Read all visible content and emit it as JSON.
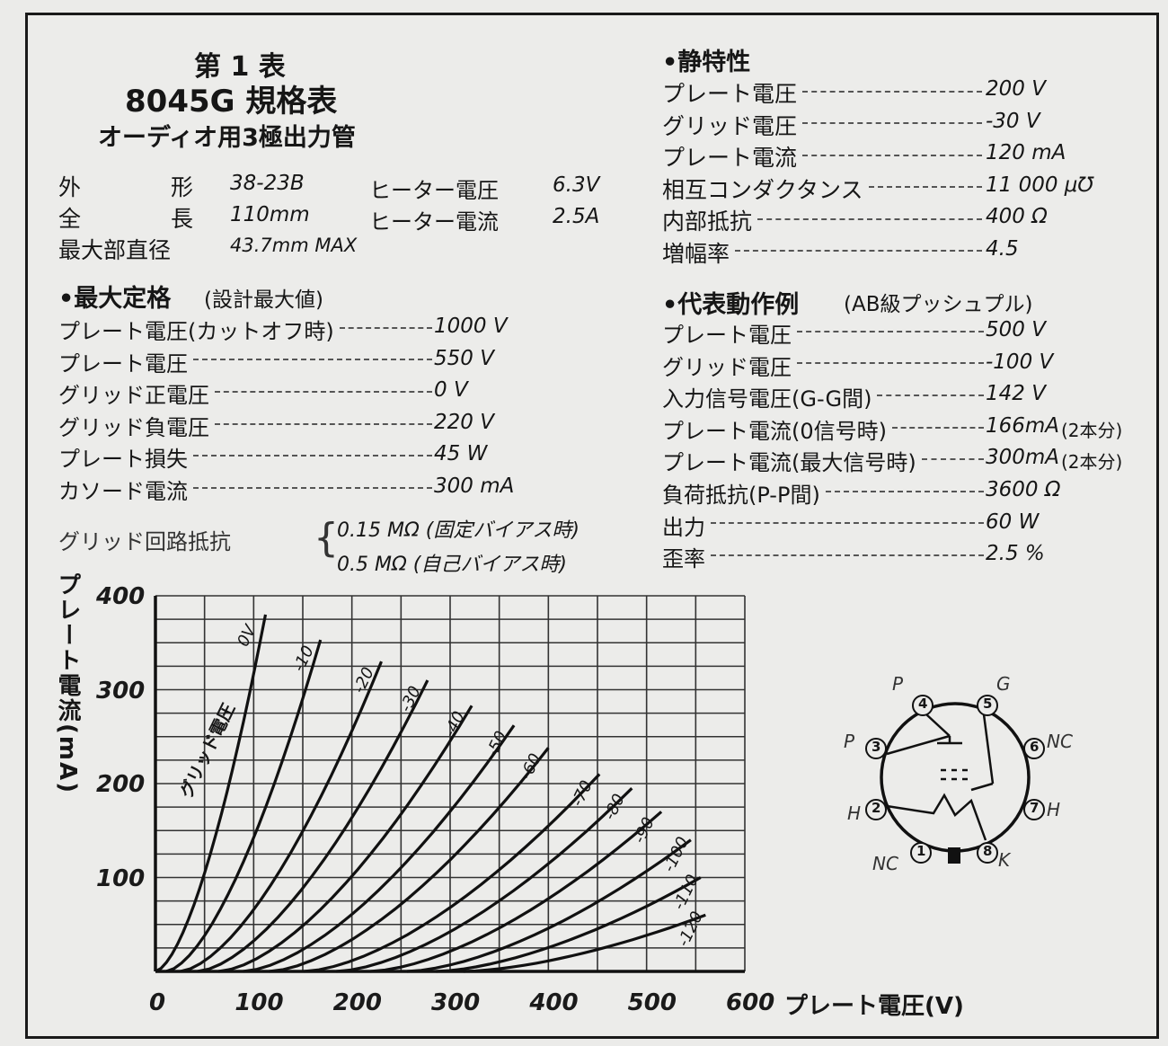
{
  "header": {
    "table_no": "第 1 表",
    "title": "8045G 規格表",
    "subtitle": "オーディオ用3極出力管"
  },
  "general": {
    "outline_label": "外　　　　形",
    "outline_value": "38-23B",
    "length_label": "全　　　　長",
    "length_value": "110mm",
    "diameter_label": "最大部直径",
    "diameter_value": "43.7mm MAX",
    "heater_voltage_label": "ヒーター電圧",
    "heater_voltage_value": "6.3V",
    "heater_current_label": "ヒーター電流",
    "heater_current_value": "2.5A"
  },
  "max_ratings": {
    "heading": "•最大定格",
    "note": "(設計最大値)",
    "items": [
      {
        "label": "プレート電圧(カットオフ時)",
        "value": "1000 V"
      },
      {
        "label": "プレート電圧",
        "value": "550 V"
      },
      {
        "label": "グリッド正電圧",
        "value": "0 V"
      },
      {
        "label": "グリッド負電圧",
        "value": "220 V"
      },
      {
        "label": "プレート損失",
        "value": "45 W"
      },
      {
        "label": "カソード電流",
        "value": "300 mA"
      }
    ],
    "grid_resistance_label": "グリッド回路抵抗",
    "grid_resistance_fixed": "0.15 MΩ (固定バイアス時)",
    "grid_resistance_self": "0.5 MΩ (自己バイアス時)"
  },
  "static": {
    "heading": "•静特性",
    "items": [
      {
        "label": "プレート電圧",
        "value": "200 V"
      },
      {
        "label": "グリッド電圧",
        "value": "-30 V"
      },
      {
        "label": "プレート電流",
        "value": "120 mA"
      },
      {
        "label": "相互コンダクタンス",
        "value": "11 000 μ℧"
      },
      {
        "label": "内部抵抗",
        "value": "400 Ω"
      },
      {
        "label": "増幅率",
        "value": "4.5"
      }
    ]
  },
  "typical": {
    "heading": "•代表動作例",
    "note": "(AB級プッシュプル)",
    "items": [
      {
        "label": "プレート電圧",
        "value": "500 V",
        "extra": ""
      },
      {
        "label": "グリッド電圧",
        "value": "-100 V",
        "extra": ""
      },
      {
        "label": "入力信号電圧(G-G間)",
        "value": "142 V",
        "extra": ""
      },
      {
        "label": "プレート電流(0信号時)",
        "value": "166mA",
        "extra": "(2本分)"
      },
      {
        "label": "プレート電流(最大信号時)",
        "value": "300mA",
        "extra": "(2本分)"
      },
      {
        "label": "負荷抵抗(P-P間)",
        "value": "3600 Ω",
        "extra": ""
      },
      {
        "label": "出力",
        "value": "60 W",
        "extra": ""
      },
      {
        "label": "歪率",
        "value": "2.5 %",
        "extra": ""
      }
    ]
  },
  "pin_diagram": {
    "labels": {
      "p_top": "P",
      "g": "G",
      "p_left": "P",
      "nc_right": "NC",
      "h_left": "H",
      "h_right": "H",
      "nc_left": "NC",
      "k": "K"
    },
    "pins": [
      "4",
      "5",
      "3",
      "6",
      "2",
      "7",
      "1",
      "8"
    ]
  },
  "chart_data": {
    "type": "line",
    "xlabel": "プレート電圧(V)",
    "ylabel": "プレート電流(mA)",
    "xlim": [
      0,
      600
    ],
    "ylim": [
      0,
      400
    ],
    "x_ticks": [
      "0",
      "100",
      "200",
      "300",
      "400",
      "500",
      "600"
    ],
    "y_ticks": [
      "100",
      "200",
      "300",
      "400"
    ],
    "grid": true,
    "curve_label_prefix": "グリッド電圧",
    "series": [
      {
        "name": "0V",
        "end": [
          112,
          380
        ]
      },
      {
        "name": "-10",
        "end": [
          168,
          353
        ]
      },
      {
        "name": "-20",
        "end": [
          230,
          330
        ]
      },
      {
        "name": "-30",
        "end": [
          277,
          310
        ]
      },
      {
        "name": "-40",
        "end": [
          322,
          283
        ]
      },
      {
        "name": "-50",
        "end": [
          365,
          262
        ]
      },
      {
        "name": "-60",
        "end": [
          400,
          238
        ]
      },
      {
        "name": "-70",
        "end": [
          452,
          210
        ]
      },
      {
        "name": "-80",
        "end": [
          485,
          195
        ]
      },
      {
        "name": "-90",
        "end": [
          515,
          170
        ]
      },
      {
        "name": "-100",
        "end": [
          545,
          140
        ]
      },
      {
        "name": "-110",
        "end": [
          555,
          100
        ]
      },
      {
        "name": "-120",
        "end": [
          560,
          60
        ]
      }
    ]
  }
}
